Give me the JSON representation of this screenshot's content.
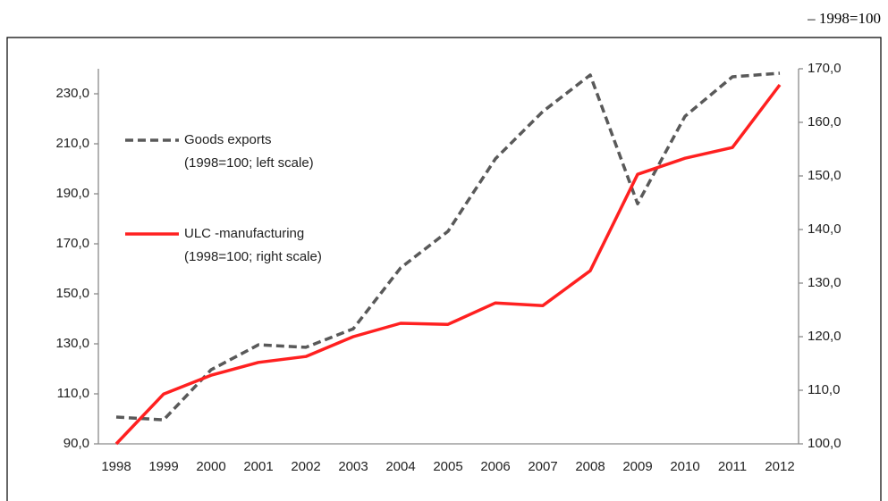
{
  "chart_data": {
    "type": "line",
    "header_note": "– 1998=100",
    "categories": [
      "1998",
      "1999",
      "2000",
      "2001",
      "2002",
      "2003",
      "2004",
      "2005",
      "2006",
      "2007",
      "2008",
      "2009",
      "2010",
      "2011",
      "2012"
    ],
    "series": [
      {
        "name": "Goods exports",
        "legend_note": "(1998=100; left scale)",
        "color": "#595959",
        "dash": true,
        "axis": "y",
        "values": [
          100.7,
          99.6,
          119.6,
          129.6,
          128.6,
          136.0,
          160.4,
          175.0,
          204.0,
          222.9,
          237.5,
          186.0,
          221.0,
          236.8,
          238.2
        ]
      },
      {
        "name": "ULC -manufacturing",
        "legend_note": "(1998=100; right scale)",
        "color": "#ff2020",
        "dash": false,
        "axis": "y2",
        "values": [
          100.0,
          109.3,
          112.8,
          115.2,
          116.3,
          120.0,
          122.5,
          122.3,
          126.3,
          125.8,
          132.3,
          150.3,
          153.3,
          155.3,
          167.0
        ]
      }
    ],
    "ylim": [
      90,
      240
    ],
    "yticks": [
      {
        "value": 90,
        "label": "90,0"
      },
      {
        "value": 110,
        "label": "110,0"
      },
      {
        "value": 130,
        "label": "130,0"
      },
      {
        "value": 150,
        "label": "150,0"
      },
      {
        "value": 170,
        "label": "170,0"
      },
      {
        "value": 190,
        "label": "190,0"
      },
      {
        "value": 210,
        "label": "210,0"
      },
      {
        "value": 230,
        "label": "230,0"
      }
    ],
    "y2lim": [
      100,
      170
    ],
    "y2ticks": [
      {
        "value": 100,
        "label": "100,0"
      },
      {
        "value": 110,
        "label": "110,0"
      },
      {
        "value": 120,
        "label": "120,0"
      },
      {
        "value": 130,
        "label": "130,0"
      },
      {
        "value": 140,
        "label": "140,0"
      },
      {
        "value": 150,
        "label": "150,0"
      },
      {
        "value": 160,
        "label": "160,0"
      },
      {
        "value": 170,
        "label": "170,0"
      }
    ]
  }
}
